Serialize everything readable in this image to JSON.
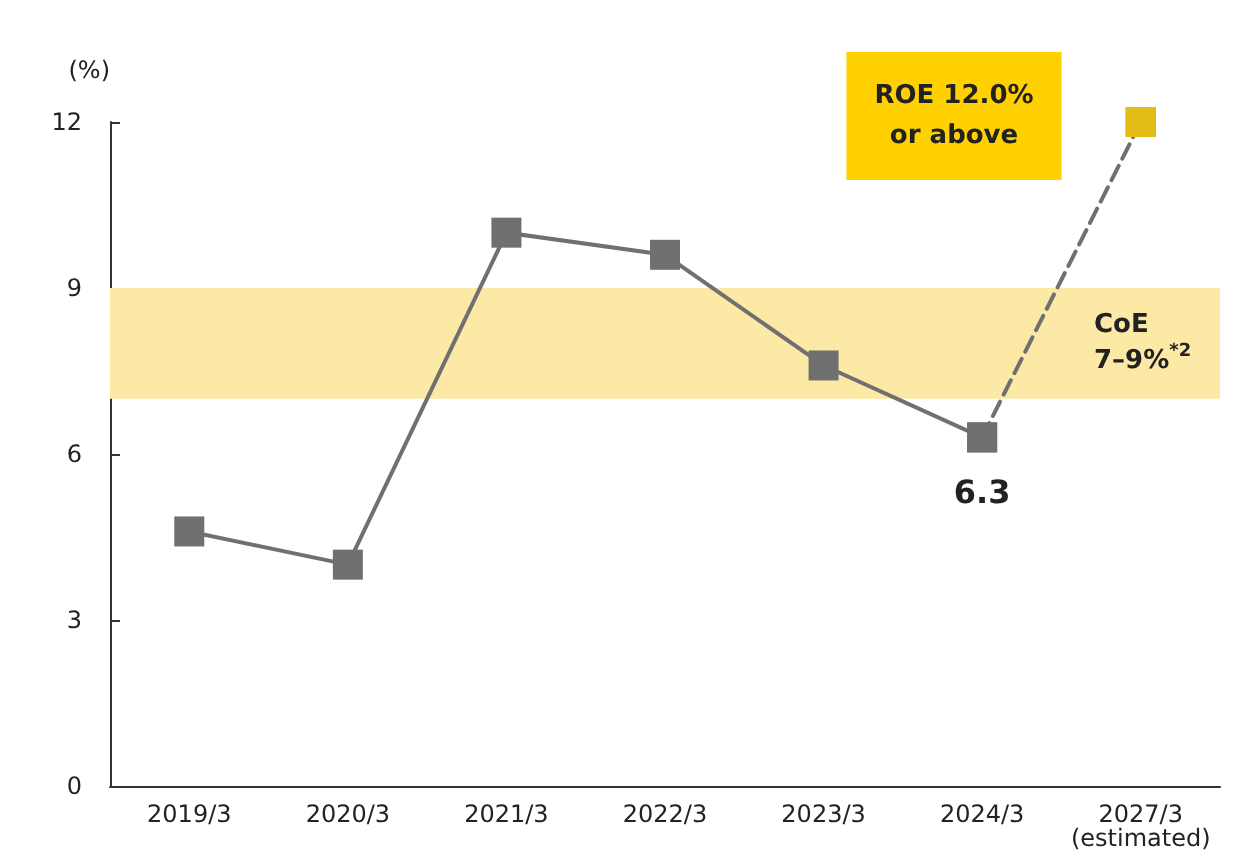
{
  "chart_data": {
    "type": "line",
    "ylabel": "(%)",
    "categories": [
      "2019/3",
      "2020/3",
      "2021/3",
      "2022/3",
      "2023/3",
      "2024/3",
      "2027/3\n(estimated)"
    ],
    "series": [
      {
        "color": "#707070",
        "values": [
          4.6,
          4.0,
          10.0,
          9.6,
          7.6,
          6.3,
          null
        ],
        "value_labels": [
          null,
          null,
          null,
          null,
          null,
          "6.3",
          null
        ]
      },
      {
        "color": "#707070",
        "values": [
          null,
          null,
          null,
          null,
          null,
          6.3,
          12.0
        ],
        "line_style": "dashed",
        "marker": "square"
      },
      {
        "type": "scatter",
        "color": "#ffd100",
        "values": [
          null,
          null,
          null,
          null,
          null,
          null,
          12.0
        ],
        "marker": "square"
      }
    ],
    "ylim": [
      0,
      12
    ],
    "yticks": [
      0,
      3,
      6,
      9,
      12
    ],
    "bands": [
      {
        "axis": "y",
        "from": 7,
        "to": 9,
        "label": "CoE\n7–9%$^{*2}$",
        "color": "#fde9a6"
      }
    ],
    "annotations": [
      "ROE 12.0%\nor above"
    ],
    "marker": "square",
    "line_style": "solid",
    "grid": false
  }
}
